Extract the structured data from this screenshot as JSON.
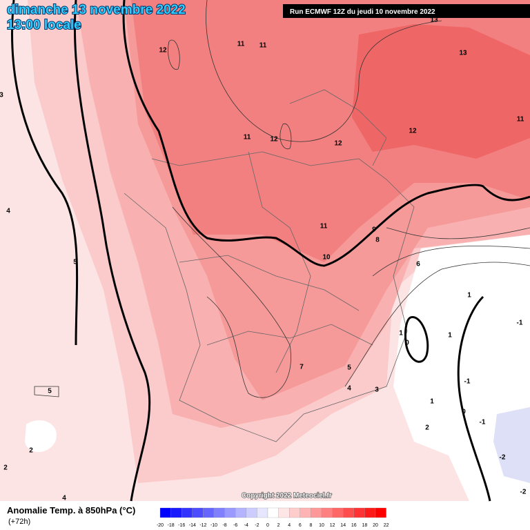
{
  "header": {
    "title": "dimanche 13 novembre 2022",
    "time": "13:00 locale",
    "run": "Run ECMWF 12Z du jeudi 10 novembre 2022"
  },
  "map": {
    "contour_labels": [
      12,
      11,
      11,
      13,
      13,
      11,
      12,
      11,
      12,
      12,
      11,
      9,
      8,
      10,
      6,
      1,
      1,
      0,
      1,
      -1,
      7,
      5,
      4,
      3,
      -1,
      1,
      0,
      -1,
      2,
      -2,
      -2,
      5,
      4,
      5,
      2,
      2,
      4,
      3
    ],
    "copyright": "Copyright 2022 Meteociel.fr"
  },
  "legend": {
    "title": "Anomalie Temp. à 850hPa (°C)",
    "subtitle": "(+72h)",
    "ticks": [
      -20,
      -18,
      -16,
      -14,
      -12,
      -10,
      -8,
      -6,
      -4,
      -2,
      0,
      2,
      4,
      6,
      8,
      10,
      12,
      14,
      16,
      18,
      20,
      22
    ],
    "colors": [
      "#0000ff",
      "#1a1aff",
      "#3333ff",
      "#4d4dff",
      "#6666ff",
      "#8080ff",
      "#9999ff",
      "#b3b3ff",
      "#ccccff",
      "#e6e6ff",
      "#ffffff",
      "#ffe6e6",
      "#ffcccc",
      "#ffb3b3",
      "#ff9999",
      "#ff8080",
      "#ff6666",
      "#ff4d4d",
      "#ff3333",
      "#ff1a1a",
      "#ff0000"
    ]
  }
}
